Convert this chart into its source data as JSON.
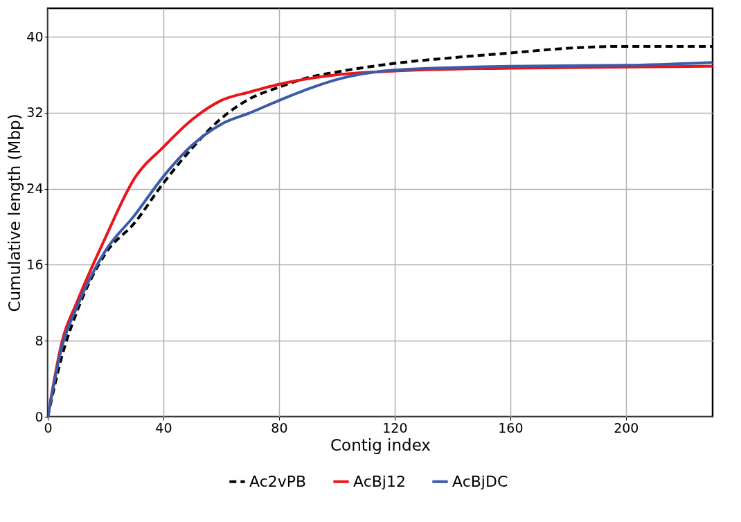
{
  "chart_data": {
    "type": "line",
    "xlabel": "Contig index",
    "ylabel": "Cumulative length (Mbp)",
    "xlim": [
      0,
      230
    ],
    "xticks": [
      0,
      40,
      80,
      120,
      160,
      200
    ],
    "ylim": [
      0,
      43
    ],
    "yticks": [
      0,
      8,
      16,
      24,
      32,
      40
    ],
    "grid": true,
    "legend": "bottom",
    "marker": "none",
    "series": [
      {
        "name": "Ac2vPB",
        "color": "#000000",
        "line_style": "dashed",
        "x": [
          0,
          5,
          10,
          20,
          30,
          40,
          50,
          60,
          70,
          80,
          90,
          100,
          120,
          140,
          160,
          180,
          200,
          230
        ],
        "values": [
          0,
          6.5,
          11,
          17.2,
          20.4,
          24.6,
          28.3,
          31.4,
          33.5,
          34.7,
          35.7,
          36.3,
          37.2,
          37.8,
          38.3,
          38.8,
          39.0,
          39.0
        ]
      },
      {
        "name": "AcBj12",
        "color": "#e8161b",
        "line_style": "solid",
        "x": [
          0,
          5,
          10,
          20,
          30,
          40,
          50,
          60,
          70,
          80,
          100,
          120,
          160,
          230
        ],
        "values": [
          0,
          8,
          12,
          18.9,
          25.1,
          28.4,
          31.3,
          33.3,
          34.2,
          35.0,
          36.0,
          36.4,
          36.7,
          36.9
        ]
      },
      {
        "name": "AcBjDC",
        "color": "#3a5ba8",
        "line_style": "solid",
        "x": [
          0,
          5,
          10,
          20,
          30,
          40,
          50,
          60,
          70,
          80,
          90,
          100,
          120,
          160,
          200,
          230
        ],
        "values": [
          0,
          7.5,
          11.5,
          17.5,
          21.2,
          25.3,
          28.6,
          30.8,
          32.0,
          33.3,
          34.5,
          35.5,
          36.5,
          36.9,
          37.0,
          37.3
        ]
      }
    ]
  }
}
